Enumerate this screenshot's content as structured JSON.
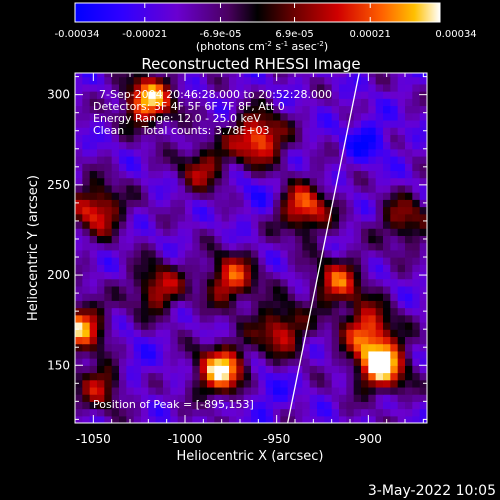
{
  "chart_data": {
    "type": "heatmap",
    "title": "Reconstructed RHESSI Image",
    "xlabel": "Heliocentric X (arcsec)",
    "ylabel": "Heliocentric Y (arcsec)",
    "xlim": [
      -1060,
      -868
    ],
    "ylim": [
      118,
      312
    ],
    "x_ticks": [
      -1050,
      -1000,
      -950,
      -900
    ],
    "y_ticks": [
      150,
      200,
      250,
      300
    ],
    "colorbar": {
      "range": [
        -0.00034,
        0.00034
      ],
      "ticks": [
        -0.00034,
        -0.00021,
        -6.9e-05,
        6.9e-05,
        0.00021,
        0.00034
      ],
      "tick_labels": [
        "-0.00034",
        "-0.00021",
        "-6.9e-05",
        "6.9e-05",
        "0.00021",
        "0.00034"
      ],
      "units_text": "(photons cm",
      "units_exp1": "-2",
      "units_mid": " s",
      "units_exp2": "-1",
      "units_end": " asec",
      "units_exp3": "-2",
      "units_close": ")"
    },
    "annotations": [
      "7-Sep-2004 20:46:28.000 to 20:52:28.000",
      "Detectors: 3F 4F 5F 6F 7F 8F, Att 0",
      "Energy Range: 12.0 - 25.0 keV",
      "Clean     Total counts: 3.78E+03"
    ],
    "peak_label": "Position of Peak = [-895,153]",
    "limb_line": [
      [
        -944,
        118
      ],
      [
        -905,
        312
      ]
    ],
    "bright_sources": [
      {
        "x": -893,
        "y": 150,
        "level": 1.0
      },
      {
        "x": -980,
        "y": 147,
        "level": 0.95
      },
      {
        "x": -1020,
        "y": 297,
        "level": 0.9
      },
      {
        "x": -960,
        "y": 276,
        "level": 0.85
      },
      {
        "x": -1058,
        "y": 172,
        "level": 0.8
      },
      {
        "x": -935,
        "y": 237,
        "level": 0.75
      },
      {
        "x": -1048,
        "y": 237,
        "level": 0.7
      },
      {
        "x": -975,
        "y": 198,
        "level": 0.7
      },
      {
        "x": -917,
        "y": 196,
        "level": 0.65
      },
      {
        "x": -1015,
        "y": 193,
        "level": 0.6
      },
      {
        "x": -948,
        "y": 170,
        "level": 0.65
      },
      {
        "x": -900,
        "y": 170,
        "level": 0.7
      },
      {
        "x": -1045,
        "y": 140,
        "level": 0.55
      },
      {
        "x": -990,
        "y": 260,
        "level": 0.5
      },
      {
        "x": -880,
        "y": 230,
        "level": 0.5
      }
    ],
    "dark_sources": [
      {
        "x": -900,
        "y": 275,
        "level": 1.0
      },
      {
        "x": -962,
        "y": 245,
        "level": 0.6
      },
      {
        "x": -958,
        "y": 135,
        "level": 0.8
      },
      {
        "x": -1030,
        "y": 150,
        "level": 0.7
      }
    ]
  },
  "footer": {
    "date": "3-May-2022 10:05"
  }
}
